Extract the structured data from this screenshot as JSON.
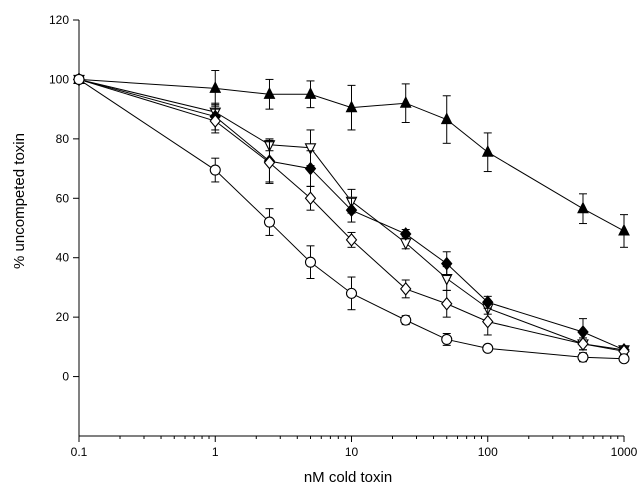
{
  "chart_data": {
    "type": "scatter",
    "title": "",
    "xlabel": "nM cold toxin",
    "ylabel": "% uncompeted toxin",
    "xscale": "log",
    "xlim": [
      0.1,
      1000
    ],
    "ylim": [
      -20,
      120
    ],
    "xticks": [
      0.1,
      1,
      10,
      100,
      1000
    ],
    "xtick_labels": [
      "0.1",
      "1",
      "10",
      "100",
      "1000"
    ],
    "yticks": [
      0,
      20,
      40,
      60,
      80,
      100,
      120
    ],
    "ytick_labels": [
      "0",
      "20",
      "40",
      "60",
      "80",
      "100",
      "120"
    ],
    "grid": false,
    "legend": "none",
    "series": [
      {
        "marker": "triangle-up-filled",
        "points": [
          {
            "x": 0.1,
            "y": 100,
            "err": 0
          },
          {
            "x": 1,
            "y": 97,
            "err": 6
          },
          {
            "x": 2.5,
            "y": 95,
            "err": 5
          },
          {
            "x": 5,
            "y": 95,
            "err": 4.5
          },
          {
            "x": 10,
            "y": 90.5,
            "err": 7.5
          },
          {
            "x": 25,
            "y": 92,
            "err": 6.5
          },
          {
            "x": 50,
            "y": 86.5,
            "err": 8
          },
          {
            "x": 100,
            "y": 75.5,
            "err": 6.5
          },
          {
            "x": 500,
            "y": 56.5,
            "err": 5
          },
          {
            "x": 1000,
            "y": 49,
            "err": 5.5
          }
        ]
      },
      {
        "marker": "triangle-down-open",
        "points": [
          {
            "x": 0.1,
            "y": 100,
            "err": 0
          },
          {
            "x": 1,
            "y": 89,
            "err": 2.5
          },
          {
            "x": 2.5,
            "y": 78,
            "err": 2
          },
          {
            "x": 5,
            "y": 77,
            "err": 6
          },
          {
            "x": 10,
            "y": 59,
            "err": 4
          },
          {
            "x": 25,
            "y": 45,
            "err": 2
          },
          {
            "x": 50,
            "y": 33,
            "err": 4
          },
          {
            "x": 100,
            "y": 23,
            "err": 2
          },
          {
            "x": 500,
            "y": 11,
            "err": 2
          },
          {
            "x": 1000,
            "y": 9,
            "err": 1
          }
        ]
      },
      {
        "marker": "diamond-filled",
        "points": [
          {
            "x": 0.1,
            "y": 100,
            "err": 0
          },
          {
            "x": 1,
            "y": 87.5,
            "err": 4.5
          },
          {
            "x": 2.5,
            "y": 72.5,
            "err": 7
          },
          {
            "x": 5,
            "y": 70,
            "err": 6
          },
          {
            "x": 10,
            "y": 56,
            "err": 4
          },
          {
            "x": 25,
            "y": 48,
            "err": 1.5
          },
          {
            "x": 50,
            "y": 38,
            "err": 4
          },
          {
            "x": 100,
            "y": 25,
            "err": 2
          },
          {
            "x": 500,
            "y": 15,
            "err": 4.5
          },
          {
            "x": 1000,
            "y": 9,
            "err": 1
          }
        ]
      },
      {
        "marker": "diamond-open",
        "points": [
          {
            "x": 0.1,
            "y": 100,
            "err": 0
          },
          {
            "x": 1,
            "y": 86,
            "err": 4
          },
          {
            "x": 2.5,
            "y": 72,
            "err": 7
          },
          {
            "x": 5,
            "y": 60,
            "err": 4
          },
          {
            "x": 10,
            "y": 46,
            "err": 2.5
          },
          {
            "x": 25,
            "y": 29.5,
            "err": 3
          },
          {
            "x": 50,
            "y": 24.5,
            "err": 4.5
          },
          {
            "x": 100,
            "y": 18.5,
            "err": 4.5
          },
          {
            "x": 500,
            "y": 11,
            "err": 2
          },
          {
            "x": 1000,
            "y": 8.5,
            "err": 1
          }
        ]
      },
      {
        "marker": "circle-open",
        "points": [
          {
            "x": 0.1,
            "y": 100,
            "err": 0
          },
          {
            "x": 1,
            "y": 69.5,
            "err": 4
          },
          {
            "x": 2.5,
            "y": 52,
            "err": 4.5
          },
          {
            "x": 5,
            "y": 38.5,
            "err": 5.5
          },
          {
            "x": 10,
            "y": 28,
            "err": 5.5
          },
          {
            "x": 25,
            "y": 19,
            "err": 1.5
          },
          {
            "x": 50,
            "y": 12.5,
            "err": 2
          },
          {
            "x": 100,
            "y": 9.5,
            "err": 0.5
          },
          {
            "x": 500,
            "y": 6.5,
            "err": 1.5
          },
          {
            "x": 1000,
            "y": 6,
            "err": 1
          }
        ]
      }
    ]
  }
}
